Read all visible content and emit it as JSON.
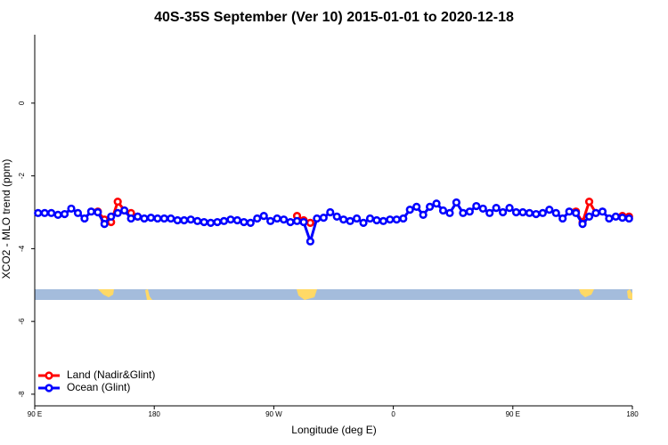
{
  "chart_data": {
    "type": "line",
    "title": "40S-35S September (Ver 10)   2015-01-01 to 2020-12-18",
    "x_label": "Longitude (deg E)",
    "y_label": "XCO2 - MLO trend (ppm)",
    "xlim": [
      90,
      540
    ],
    "xticks": [
      {
        "value": 90,
        "label": "90 E"
      },
      180,
      {
        "value": 270,
        "label": "90 W"
      },
      {
        "value": 360,
        "label": "0"
      },
      {
        "value": 450,
        "label": "90 E"
      },
      {
        "value": 540,
        "label": "180"
      }
    ],
    "ylim": [
      -8.32,
      1.88
    ],
    "yticks": [
      0,
      -2,
      -4,
      -6,
      -8
    ],
    "legend": "bottom-left",
    "series": [
      {
        "name": "Land (Nadir&Glint)",
        "color": "#ff0000",
        "x": [
          137.5,
          142.5,
          147.5,
          152.5,
          157.5,
          162.5,
          167.5,
          172.5,
          287.5,
          292.5,
          297.5,
          302.5,
          497.5,
          502.5,
          507.5,
          512.5,
          517.5,
          532.5,
          537.5
        ],
        "values": [
          -2.98,
          -3.2,
          -3.27,
          -2.71,
          -2.95,
          -3.02,
          -3.12,
          null,
          -3.1,
          -3.22,
          -3.29,
          null,
          -2.98,
          -3.27,
          -2.71,
          -3.02,
          null,
          -3.1,
          -3.12
        ]
      },
      {
        "name": "Ocean (Glint)",
        "color": "#0000ff",
        "x": [
          92.5,
          97.5,
          102.5,
          107.5,
          112.5,
          117.5,
          122.5,
          127.5,
          132.5,
          137.5,
          142.5,
          147.5,
          152.5,
          157.5,
          162.5,
          167.5,
          172.5,
          177.5,
          182.5,
          187.5,
          192.5,
          197.5,
          202.5,
          207.5,
          212.5,
          217.5,
          222.5,
          227.5,
          232.5,
          237.5,
          242.5,
          247.5,
          252.5,
          257.5,
          262.5,
          267.5,
          272.5,
          277.5,
          282.5,
          287.5,
          292.5,
          297.5,
          302.5,
          307.5,
          312.5,
          317.5,
          322.5,
          327.5,
          332.5,
          337.5,
          342.5,
          347.5,
          352.5,
          357.5,
          362.5,
          367.5,
          372.5,
          377.5,
          382.5,
          387.5,
          392.5,
          397.5,
          402.5,
          407.5,
          412.5,
          417.5,
          422.5,
          427.5,
          432.5,
          437.5,
          442.5,
          447.5,
          452.5,
          457.5,
          462.5,
          467.5,
          472.5,
          477.5,
          482.5,
          487.5,
          492.5,
          497.5,
          502.5,
          507.5,
          512.5,
          517.5,
          522.5,
          527.5,
          532.5,
          537.5
        ],
        "values": [
          -3.02,
          -3.02,
          -3.02,
          -3.07,
          -3.05,
          -2.9,
          -3.02,
          -3.17,
          -2.98,
          -3.0,
          -3.32,
          -3.12,
          -3.02,
          -2.95,
          -3.17,
          -3.12,
          -3.17,
          -3.15,
          -3.17,
          -3.17,
          -3.17,
          -3.22,
          -3.22,
          -3.2,
          -3.24,
          -3.27,
          -3.29,
          -3.27,
          -3.24,
          -3.2,
          -3.22,
          -3.27,
          -3.29,
          -3.17,
          -3.1,
          -3.24,
          -3.17,
          -3.2,
          -3.27,
          -3.24,
          -3.27,
          -3.8,
          -3.17,
          -3.15,
          -3.0,
          -3.12,
          -3.2,
          -3.24,
          -3.17,
          -3.29,
          -3.17,
          -3.22,
          -3.24,
          -3.2,
          -3.2,
          -3.17,
          -2.93,
          -2.85,
          -3.07,
          -2.85,
          -2.76,
          -2.95,
          -3.02,
          -2.73,
          -3.02,
          -2.98,
          -2.83,
          -2.9,
          -3.02,
          -2.88,
          -3.0,
          -2.88,
          -3.0,
          -3.0,
          -3.02,
          -3.05,
          -3.02,
          -2.93,
          -3.02,
          -3.17,
          -2.98,
          -3.02,
          -3.32,
          -3.12,
          -3.02,
          -2.98,
          -3.17,
          -3.12,
          -3.15,
          -3.17
        ]
      }
    ]
  }
}
